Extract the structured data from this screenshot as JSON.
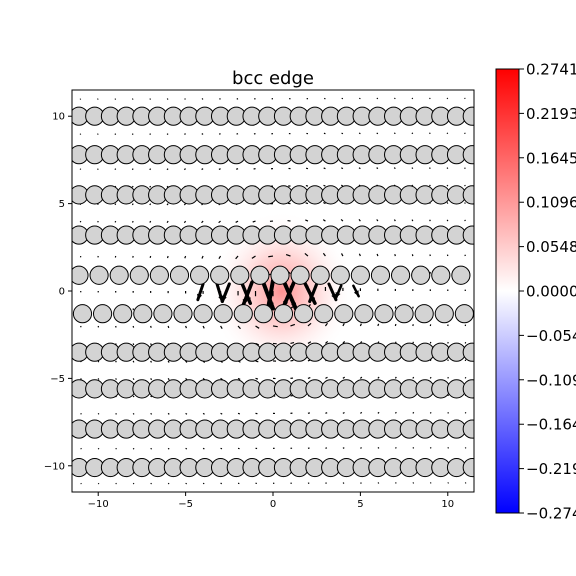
{
  "chart_data": {
    "type": "heatmap",
    "title": "bcc edge",
    "xlabel": "",
    "ylabel": "",
    "xlim": [
      -11.5,
      11.5
    ],
    "ylim": [
      -11.5,
      11.5
    ],
    "xticks": [
      -10,
      -5,
      0,
      5,
      10
    ],
    "yticks": [
      -10,
      -5,
      0,
      5,
      10
    ],
    "grid": false,
    "colormap": "bwr",
    "colorbar": {
      "min": -0.2741,
      "max": 0.2741,
      "ticks": [
        0.2741,
        0.2193,
        0.1645,
        0.1096,
        0.0548,
        0.0,
        -0.0548,
        -0.1096,
        -0.1645,
        -0.2193,
        -0.2741
      ],
      "tick_labels": [
        "0.2741",
        "0.2193",
        "0.1645",
        "0.1096",
        "0.0548",
        "0.0000",
        "−0.0548",
        "−0.1096",
        "−0.1645",
        "−0.2193",
        "−0.2741"
      ]
    },
    "atoms": {
      "description_color": "#d3d3d3",
      "rows": [
        {
          "y": 10.0,
          "x_start": -11.1,
          "spacing": 0.9,
          "count": 26
        },
        {
          "y": 7.8,
          "x_start": -11.1,
          "spacing": 0.9,
          "count": 26
        },
        {
          "y": 5.5,
          "x_start": -11.1,
          "spacing": 0.9,
          "count": 26
        },
        {
          "y": 3.2,
          "x_start": -11.1,
          "spacing": 0.9,
          "count": 26
        },
        {
          "y": 0.9,
          "x_start": -11.1,
          "spacing": 1.15,
          "count": 20
        },
        {
          "y": -1.3,
          "x_start": -10.9,
          "spacing": 1.15,
          "count": 20
        },
        {
          "y": -3.5,
          "x_start": -11.1,
          "spacing": 0.9,
          "count": 26
        },
        {
          "y": -5.6,
          "x_start": -11.1,
          "spacing": 0.9,
          "count": 26
        },
        {
          "y": -7.9,
          "x_start": -11.1,
          "spacing": 0.9,
          "count": 26
        },
        {
          "y": -10.1,
          "x_start": -11.1,
          "spacing": 0.9,
          "count": 26
        }
      ]
    },
    "stress_field": {
      "description": "positive shear stress lobe centered at the dislocation core",
      "center": [
        0.5,
        0.0
      ],
      "peak": 0.11
    },
    "quiver": {
      "core_arrows": [
        {
          "x": -4.0,
          "y": 0.4,
          "dx": -0.3,
          "dy": -0.9
        },
        {
          "x": -3.2,
          "y": 0.4,
          "dx": 0.3,
          "dy": -1.0
        },
        {
          "x": -2.5,
          "y": 0.4,
          "dx": -0.4,
          "dy": -1.0
        },
        {
          "x": -1.8,
          "y": 0.5,
          "dx": 0.5,
          "dy": -1.2
        },
        {
          "x": -1.2,
          "y": 0.5,
          "dx": -0.5,
          "dy": -1.3
        },
        {
          "x": -0.6,
          "y": 0.6,
          "dx": 0.6,
          "dy": -1.6
        },
        {
          "x": 0.0,
          "y": 0.6,
          "dx": -0.3,
          "dy": -1.7
        },
        {
          "x": 0.6,
          "y": 0.6,
          "dx": 0.7,
          "dy": -1.6
        },
        {
          "x": 1.2,
          "y": 0.5,
          "dx": -0.6,
          "dy": -1.4
        },
        {
          "x": 1.8,
          "y": 0.5,
          "dx": 0.6,
          "dy": -1.2
        },
        {
          "x": 2.5,
          "y": 0.4,
          "dx": -0.4,
          "dy": -1.0
        },
        {
          "x": 3.2,
          "y": 0.4,
          "dx": 0.4,
          "dy": -0.9
        },
        {
          "x": 3.9,
          "y": 0.3,
          "dx": -0.3,
          "dy": -0.7
        },
        {
          "x": 4.6,
          "y": 0.3,
          "dx": 0.3,
          "dy": -0.6
        }
      ]
    }
  }
}
